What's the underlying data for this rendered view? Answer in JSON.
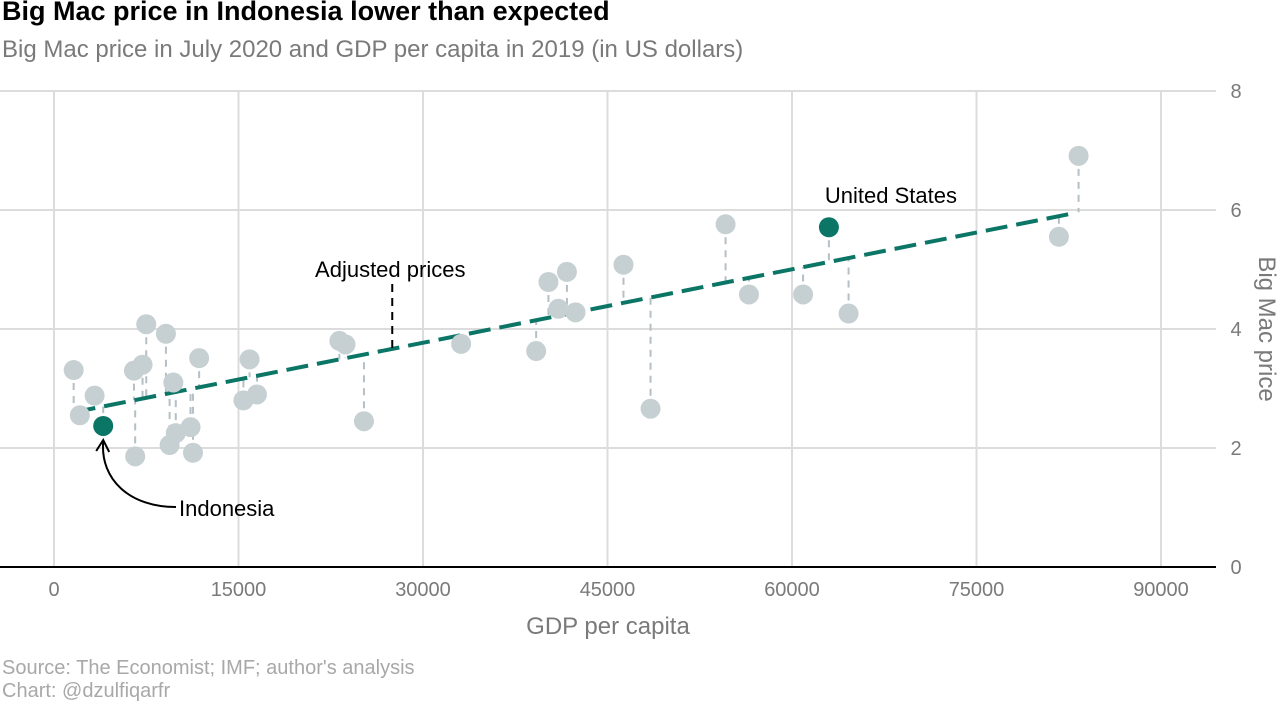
{
  "title": "Big Mac price in Indonesia lower than expected",
  "subtitle": "Big Mac price in July 2020 and GDP per capita in 2019 (in US dollars)",
  "caption": {
    "source": "Source: The Economist; IMF; author's analysis",
    "credit": "Chart: @dzulfiqarfr"
  },
  "colors": {
    "highlight": "#0b7566",
    "points": "#c6d0d3",
    "residual": "#b5bfc6",
    "grid": "#dcdcdc"
  },
  "chart_data": {
    "type": "scatter",
    "xlabel": "GDP per capita",
    "ylabel": "Big Mac price",
    "xlim": [
      0,
      90000
    ],
    "ylim": [
      0,
      8
    ],
    "x_ticks": [
      "0",
      "15000",
      "30000",
      "45000",
      "60000",
      "75000",
      "90000"
    ],
    "y_ticks": [
      "0",
      "2",
      "4",
      "6",
      "8"
    ],
    "y_axis_position": "right",
    "grid": true,
    "trend_line": {
      "x0": 1600,
      "y0": 2.6,
      "x1": 83000,
      "y1": 5.95
    },
    "points": [
      {
        "x": 1600,
        "y": 3.31
      },
      {
        "x": 2100,
        "y": 2.55
      },
      {
        "x": 3300,
        "y": 2.88
      },
      {
        "x": 6500,
        "y": 3.3
      },
      {
        "x": 6600,
        "y": 1.86
      },
      {
        "x": 7200,
        "y": 3.4
      },
      {
        "x": 7500,
        "y": 4.08
      },
      {
        "x": 9100,
        "y": 3.92
      },
      {
        "x": 9400,
        "y": 2.05
      },
      {
        "x": 9700,
        "y": 3.1
      },
      {
        "x": 9900,
        "y": 2.25
      },
      {
        "x": 11100,
        "y": 2.35
      },
      {
        "x": 11300,
        "y": 1.92
      },
      {
        "x": 11800,
        "y": 3.51
      },
      {
        "x": 15400,
        "y": 2.8
      },
      {
        "x": 15900,
        "y": 3.49
      },
      {
        "x": 16500,
        "y": 2.9
      },
      {
        "x": 23200,
        "y": 3.8
      },
      {
        "x": 23700,
        "y": 3.74
      },
      {
        "x": 25200,
        "y": 2.45
      },
      {
        "x": 33100,
        "y": 3.75
      },
      {
        "x": 39200,
        "y": 3.63
      },
      {
        "x": 40200,
        "y": 4.79
      },
      {
        "x": 41000,
        "y": 4.34
      },
      {
        "x": 41700,
        "y": 4.96
      },
      {
        "x": 42400,
        "y": 4.28
      },
      {
        "x": 46300,
        "y": 5.08
      },
      {
        "x": 48500,
        "y": 2.66
      },
      {
        "x": 54600,
        "y": 5.76
      },
      {
        "x": 56500,
        "y": 4.58
      },
      {
        "x": 60900,
        "y": 4.58
      },
      {
        "x": 64600,
        "y": 4.26
      },
      {
        "x": 81700,
        "y": 5.55
      },
      {
        "x": 83300,
        "y": 6.91
      }
    ],
    "highlighted": [
      {
        "name": "Indonesia",
        "x": 4000,
        "y": 2.37
      },
      {
        "name": "United States",
        "x": 63000,
        "y": 5.71
      }
    ],
    "annotations": {
      "adjusted": {
        "text": "Adjusted prices",
        "x": 27500
      },
      "indonesia": "Indonesia",
      "united_states": "United States"
    }
  }
}
